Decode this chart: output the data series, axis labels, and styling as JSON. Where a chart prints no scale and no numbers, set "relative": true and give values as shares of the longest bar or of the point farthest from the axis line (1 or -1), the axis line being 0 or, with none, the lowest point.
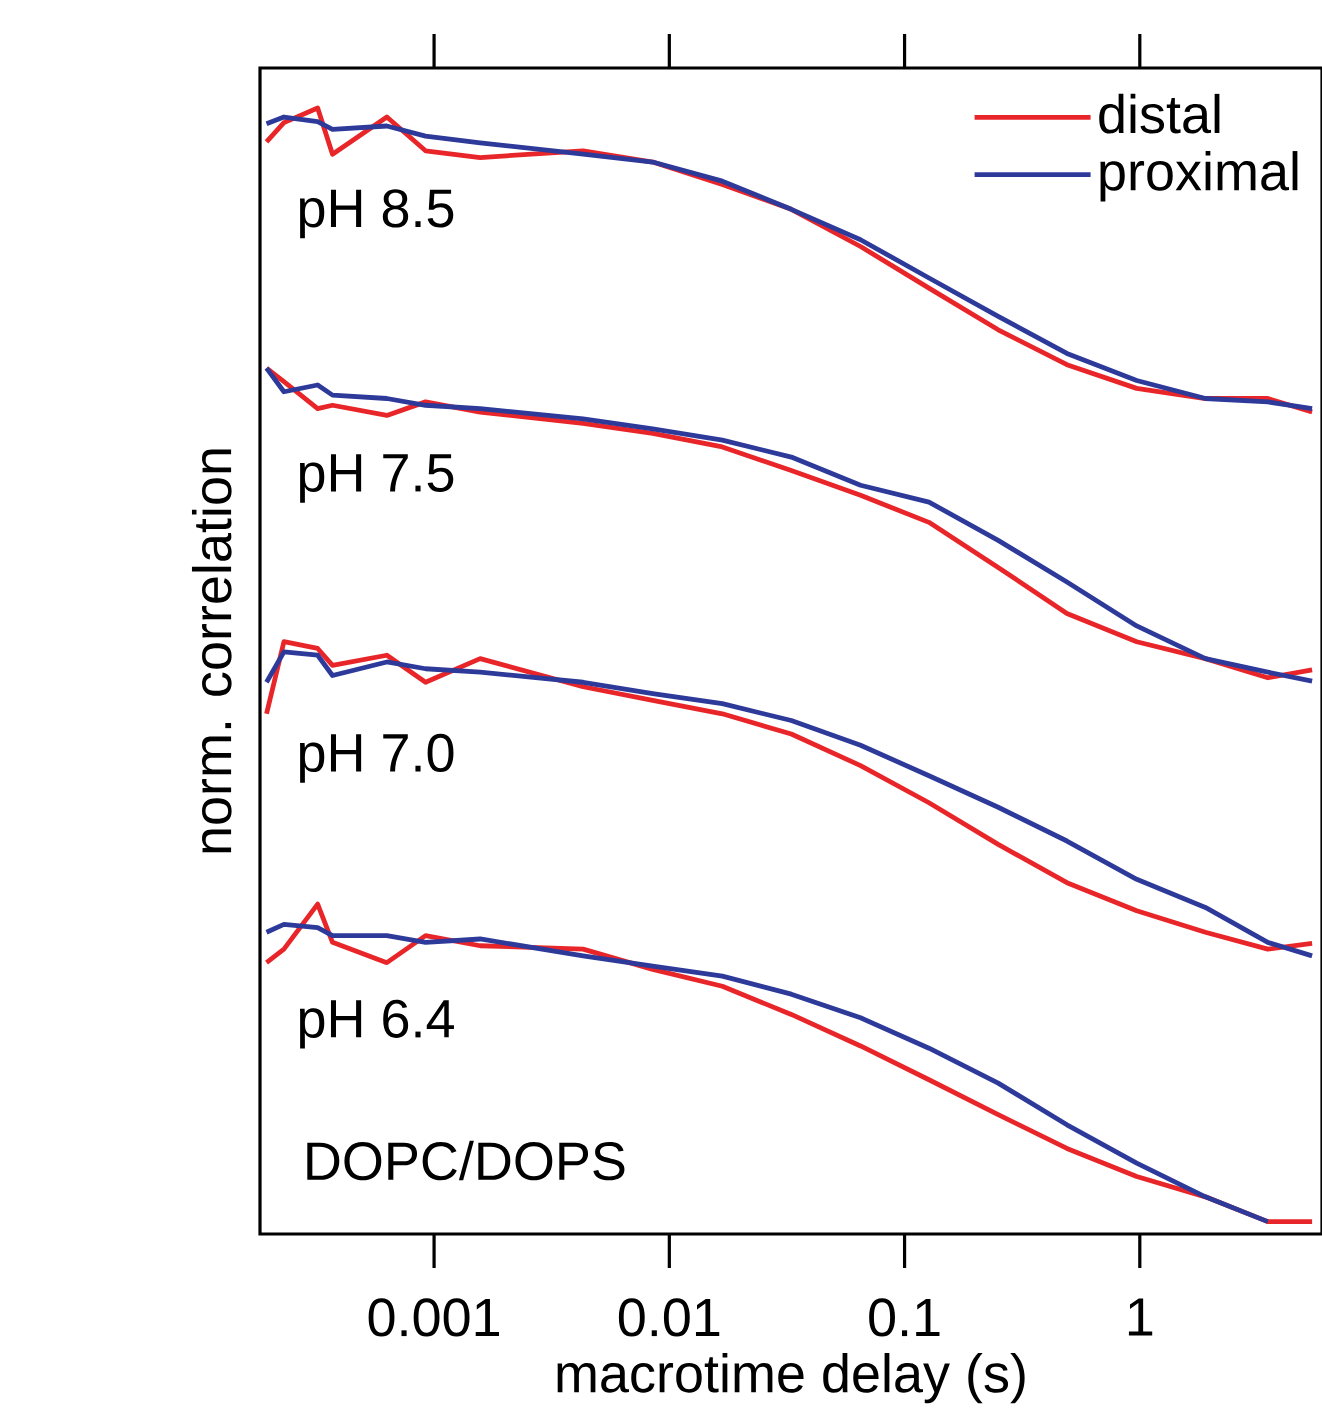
{
  "chart_data": {
    "type": "line",
    "xlabel": "macrotime delay (s)",
    "ylabel": "norm. correlation",
    "relative": true,
    "log": "x",
    "tick_labels": "x",
    "legend": "top right",
    "marker": "none",
    "line_style": "solid",
    "xlim": [
      0.000182,
      5.95
    ],
    "xticks": [
      0.001,
      0.01,
      0.1,
      1
    ],
    "x": [
      0.000194,
      0.00023,
      0.00032,
      0.00037,
      0.00063,
      0.00092,
      0.00157,
      0.0043,
      0.0085,
      0.0168,
      0.033,
      0.065,
      0.127,
      0.25,
      0.49,
      0.97,
      1.9,
      3.5,
      5.4
    ],
    "series": [
      {
        "name": "distal",
        "color": "#e8262a",
        "values": [
          0.97,
          0.987,
          1.0,
          0.959,
          0.992,
          0.962,
          0.956,
          0.962,
          0.952,
          0.932,
          0.91,
          0.877,
          0.84,
          0.803,
          0.772,
          0.751,
          0.742,
          0.742,
          0.73
        ]
      },
      {
        "name": "proximal",
        "color": "#2e3a9a",
        "values": [
          0.986,
          0.992,
          0.988,
          0.981,
          0.984,
          0.975,
          0.969,
          0.959,
          0.952,
          0.935,
          0.91,
          0.883,
          0.849,
          0.815,
          0.782,
          0.758,
          0.742,
          0.739,
          0.733
        ]
      },
      {
        "color": "#e8262a",
        "values": [
          0.769,
          0.757,
          0.733,
          0.736,
          0.727,
          0.739,
          0.73,
          0.72,
          0.711,
          0.699,
          0.678,
          0.656,
          0.632,
          0.592,
          0.551,
          0.526,
          0.511,
          0.494,
          0.501
        ]
      },
      {
        "color": "#2e3a9a",
        "values": [
          0.769,
          0.748,
          0.754,
          0.745,
          0.742,
          0.736,
          0.733,
          0.724,
          0.715,
          0.705,
          0.69,
          0.665,
          0.65,
          0.616,
          0.579,
          0.54,
          0.511,
          0.499,
          0.491
        ]
      },
      {
        "color": "#e8262a",
        "values": [
          0.462,
          0.526,
          0.52,
          0.505,
          0.514,
          0.49,
          0.511,
          0.486,
          0.474,
          0.462,
          0.444,
          0.416,
          0.383,
          0.346,
          0.312,
          0.287,
          0.268,
          0.253,
          0.258
        ]
      },
      {
        "color": "#2e3a9a",
        "values": [
          0.49,
          0.517,
          0.514,
          0.496,
          0.508,
          0.502,
          0.499,
          0.49,
          0.48,
          0.471,
          0.456,
          0.434,
          0.407,
          0.379,
          0.349,
          0.315,
          0.29,
          0.259,
          0.247
        ]
      },
      {
        "color": "#e8262a",
        "values": [
          0.241,
          0.253,
          0.293,
          0.259,
          0.241,
          0.265,
          0.256,
          0.253,
          0.235,
          0.22,
          0.195,
          0.167,
          0.137,
          0.106,
          0.076,
          0.051,
          0.033,
          0.011,
          0.011
        ]
      },
      {
        "color": "#2e3a9a",
        "values": [
          0.268,
          0.275,
          0.272,
          0.265,
          0.265,
          0.259,
          0.262,
          0.247,
          0.238,
          0.229,
          0.213,
          0.192,
          0.165,
          0.134,
          0.097,
          0.063,
          0.033,
          0.011,
          null
        ]
      }
    ],
    "annotations": [
      "pH 8.5",
      "pH 7.5",
      "pH 7.0",
      "pH 6.4",
      "DOPC/DOPS"
    ]
  }
}
